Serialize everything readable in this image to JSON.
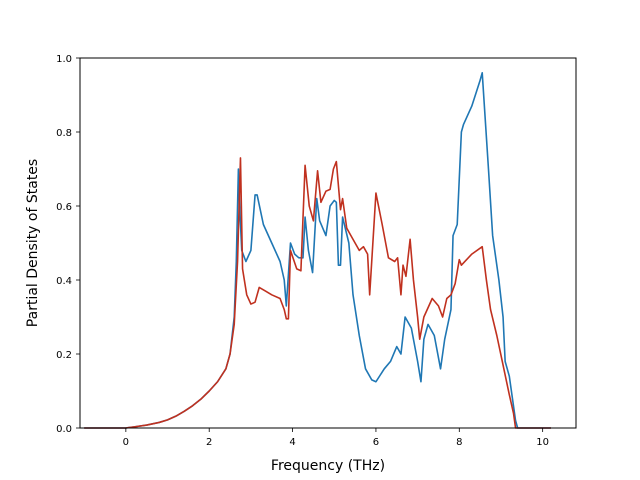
{
  "chart_data": {
    "type": "line",
    "title": "",
    "xlabel": "Frequency (THz)",
    "ylabel": "Partial Density of States",
    "xlim": [
      -1.1,
      10.8
    ],
    "ylim": [
      0.0,
      1.0
    ],
    "xticks": [
      0,
      2,
      4,
      6,
      8,
      10
    ],
    "xtick_labels": [
      "0",
      "2",
      "4",
      "6",
      "8",
      "10"
    ],
    "yticks": [
      0.0,
      0.2,
      0.4,
      0.6,
      0.8,
      1.0
    ],
    "ytick_labels": [
      "0.0",
      "0.2",
      "0.4",
      "0.6",
      "0.8",
      "1.0"
    ],
    "grid": false,
    "series": [
      {
        "color": "#1f77b4",
        "points": [
          [
            -1.0,
            0.0
          ],
          [
            0.0,
            0.0
          ],
          [
            0.2,
            0.003
          ],
          [
            0.5,
            0.008
          ],
          [
            0.8,
            0.015
          ],
          [
            1.0,
            0.022
          ],
          [
            1.2,
            0.032
          ],
          [
            1.4,
            0.045
          ],
          [
            1.6,
            0.06
          ],
          [
            1.8,
            0.078
          ],
          [
            2.0,
            0.1
          ],
          [
            2.2,
            0.125
          ],
          [
            2.4,
            0.16
          ],
          [
            2.5,
            0.2
          ],
          [
            2.6,
            0.3
          ],
          [
            2.65,
            0.45
          ],
          [
            2.7,
            0.7
          ],
          [
            2.73,
            0.6
          ],
          [
            2.78,
            0.48
          ],
          [
            2.88,
            0.45
          ],
          [
            3.0,
            0.48
          ],
          [
            3.1,
            0.63
          ],
          [
            3.15,
            0.63
          ],
          [
            3.3,
            0.55
          ],
          [
            3.5,
            0.5
          ],
          [
            3.7,
            0.45
          ],
          [
            3.8,
            0.4
          ],
          [
            3.85,
            0.33
          ],
          [
            3.95,
            0.5
          ],
          [
            4.05,
            0.47
          ],
          [
            4.15,
            0.46
          ],
          [
            4.25,
            0.46
          ],
          [
            4.3,
            0.57
          ],
          [
            4.38,
            0.48
          ],
          [
            4.48,
            0.42
          ],
          [
            4.58,
            0.62
          ],
          [
            4.65,
            0.56
          ],
          [
            4.8,
            0.52
          ],
          [
            4.9,
            0.6
          ],
          [
            5.0,
            0.615
          ],
          [
            5.05,
            0.61
          ],
          [
            5.1,
            0.44
          ],
          [
            5.15,
            0.44
          ],
          [
            5.2,
            0.57
          ],
          [
            5.35,
            0.5
          ],
          [
            5.45,
            0.36
          ],
          [
            5.6,
            0.25
          ],
          [
            5.75,
            0.16
          ],
          [
            5.9,
            0.13
          ],
          [
            6.0,
            0.125
          ],
          [
            6.2,
            0.16
          ],
          [
            6.35,
            0.18
          ],
          [
            6.5,
            0.22
          ],
          [
            6.6,
            0.2
          ],
          [
            6.7,
            0.3
          ],
          [
            6.85,
            0.27
          ],
          [
            7.0,
            0.18
          ],
          [
            7.08,
            0.125
          ],
          [
            7.15,
            0.24
          ],
          [
            7.25,
            0.28
          ],
          [
            7.4,
            0.25
          ],
          [
            7.55,
            0.16
          ],
          [
            7.65,
            0.24
          ],
          [
            7.8,
            0.32
          ],
          [
            7.85,
            0.52
          ],
          [
            7.95,
            0.55
          ],
          [
            8.05,
            0.8
          ],
          [
            8.1,
            0.82
          ],
          [
            8.3,
            0.87
          ],
          [
            8.5,
            0.94
          ],
          [
            8.55,
            0.96
          ],
          [
            8.7,
            0.7
          ],
          [
            8.8,
            0.52
          ],
          [
            8.95,
            0.4
          ],
          [
            9.05,
            0.3
          ],
          [
            9.1,
            0.18
          ],
          [
            9.2,
            0.14
          ],
          [
            9.25,
            0.1
          ],
          [
            9.35,
            0.02
          ],
          [
            9.4,
            0.0
          ],
          [
            10.2,
            0.0
          ]
        ]
      },
      {
        "color": "#c0311f",
        "points": [
          [
            -1.0,
            0.0
          ],
          [
            0.0,
            0.0
          ],
          [
            0.2,
            0.003
          ],
          [
            0.5,
            0.008
          ],
          [
            0.8,
            0.015
          ],
          [
            1.0,
            0.022
          ],
          [
            1.2,
            0.032
          ],
          [
            1.4,
            0.045
          ],
          [
            1.6,
            0.06
          ],
          [
            1.8,
            0.078
          ],
          [
            2.0,
            0.1
          ],
          [
            2.2,
            0.125
          ],
          [
            2.4,
            0.16
          ],
          [
            2.5,
            0.2
          ],
          [
            2.6,
            0.28
          ],
          [
            2.68,
            0.45
          ],
          [
            2.75,
            0.73
          ],
          [
            2.8,
            0.43
          ],
          [
            2.9,
            0.36
          ],
          [
            3.0,
            0.335
          ],
          [
            3.1,
            0.34
          ],
          [
            3.2,
            0.38
          ],
          [
            3.35,
            0.37
          ],
          [
            3.5,
            0.36
          ],
          [
            3.7,
            0.35
          ],
          [
            3.8,
            0.32
          ],
          [
            3.85,
            0.295
          ],
          [
            3.9,
            0.295
          ],
          [
            3.95,
            0.48
          ],
          [
            4.1,
            0.43
          ],
          [
            4.2,
            0.425
          ],
          [
            4.3,
            0.71
          ],
          [
            4.4,
            0.6
          ],
          [
            4.5,
            0.56
          ],
          [
            4.6,
            0.695
          ],
          [
            4.68,
            0.61
          ],
          [
            4.8,
            0.64
          ],
          [
            4.9,
            0.645
          ],
          [
            4.98,
            0.7
          ],
          [
            5.05,
            0.72
          ],
          [
            5.15,
            0.59
          ],
          [
            5.2,
            0.62
          ],
          [
            5.3,
            0.54
          ],
          [
            5.4,
            0.52
          ],
          [
            5.5,
            0.5
          ],
          [
            5.6,
            0.48
          ],
          [
            5.7,
            0.49
          ],
          [
            5.8,
            0.47
          ],
          [
            5.85,
            0.36
          ],
          [
            6.0,
            0.635
          ],
          [
            6.15,
            0.55
          ],
          [
            6.3,
            0.46
          ],
          [
            6.45,
            0.45
          ],
          [
            6.52,
            0.46
          ],
          [
            6.6,
            0.36
          ],
          [
            6.65,
            0.44
          ],
          [
            6.72,
            0.41
          ],
          [
            6.82,
            0.51
          ],
          [
            6.9,
            0.4
          ],
          [
            7.0,
            0.3
          ],
          [
            7.05,
            0.24
          ],
          [
            7.15,
            0.3
          ],
          [
            7.35,
            0.35
          ],
          [
            7.5,
            0.33
          ],
          [
            7.6,
            0.3
          ],
          [
            7.7,
            0.35
          ],
          [
            7.8,
            0.36
          ],
          [
            7.9,
            0.39
          ],
          [
            8.0,
            0.455
          ],
          [
            8.05,
            0.44
          ],
          [
            8.3,
            0.47
          ],
          [
            8.55,
            0.49
          ],
          [
            8.65,
            0.4
          ],
          [
            8.75,
            0.32
          ],
          [
            8.9,
            0.25
          ],
          [
            9.05,
            0.17
          ],
          [
            9.2,
            0.09
          ],
          [
            9.3,
            0.04
          ],
          [
            9.35,
            0.0
          ],
          [
            10.2,
            0.0
          ]
        ]
      }
    ]
  }
}
